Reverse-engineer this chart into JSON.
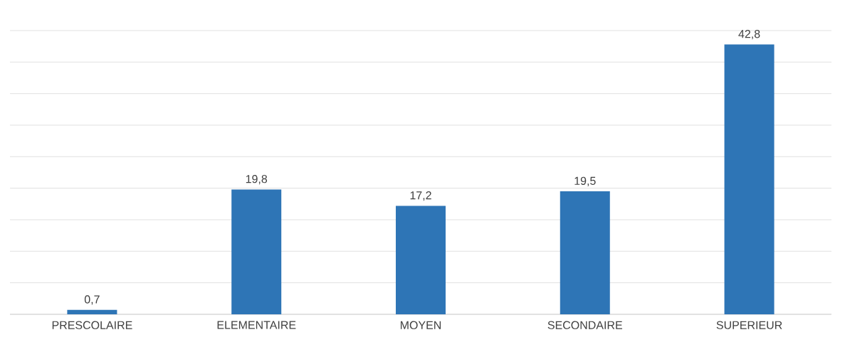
{
  "chart_data": {
    "type": "bar",
    "categories": [
      "PRESCOLAIRE",
      "ELEMENTAIRE",
      "MOYEN",
      "SECONDAIRE",
      "SUPERIEUR"
    ],
    "values": [
      0.7,
      19.8,
      17.2,
      19.5,
      42.8
    ],
    "value_labels": [
      "0,7",
      "19,8",
      "17,2",
      "19,5",
      "42,8"
    ],
    "color": "#2e75b6",
    "ylim": [
      0,
      45
    ],
    "yticks": [
      {
        "value": 0,
        "label": null
      },
      {
        "value": 5,
        "label": null
      },
      {
        "value": 10,
        "label": null
      },
      {
        "value": 15,
        "label": null
      },
      {
        "value": 20,
        "label": null
      },
      {
        "value": 25,
        "label": null
      },
      {
        "value": 30,
        "label": null
      },
      {
        "value": 35,
        "label": null
      },
      {
        "value": 40,
        "label": null
      },
      {
        "value": 45,
        "label": null
      }
    ],
    "grid": "y",
    "tick_labels": "x"
  }
}
